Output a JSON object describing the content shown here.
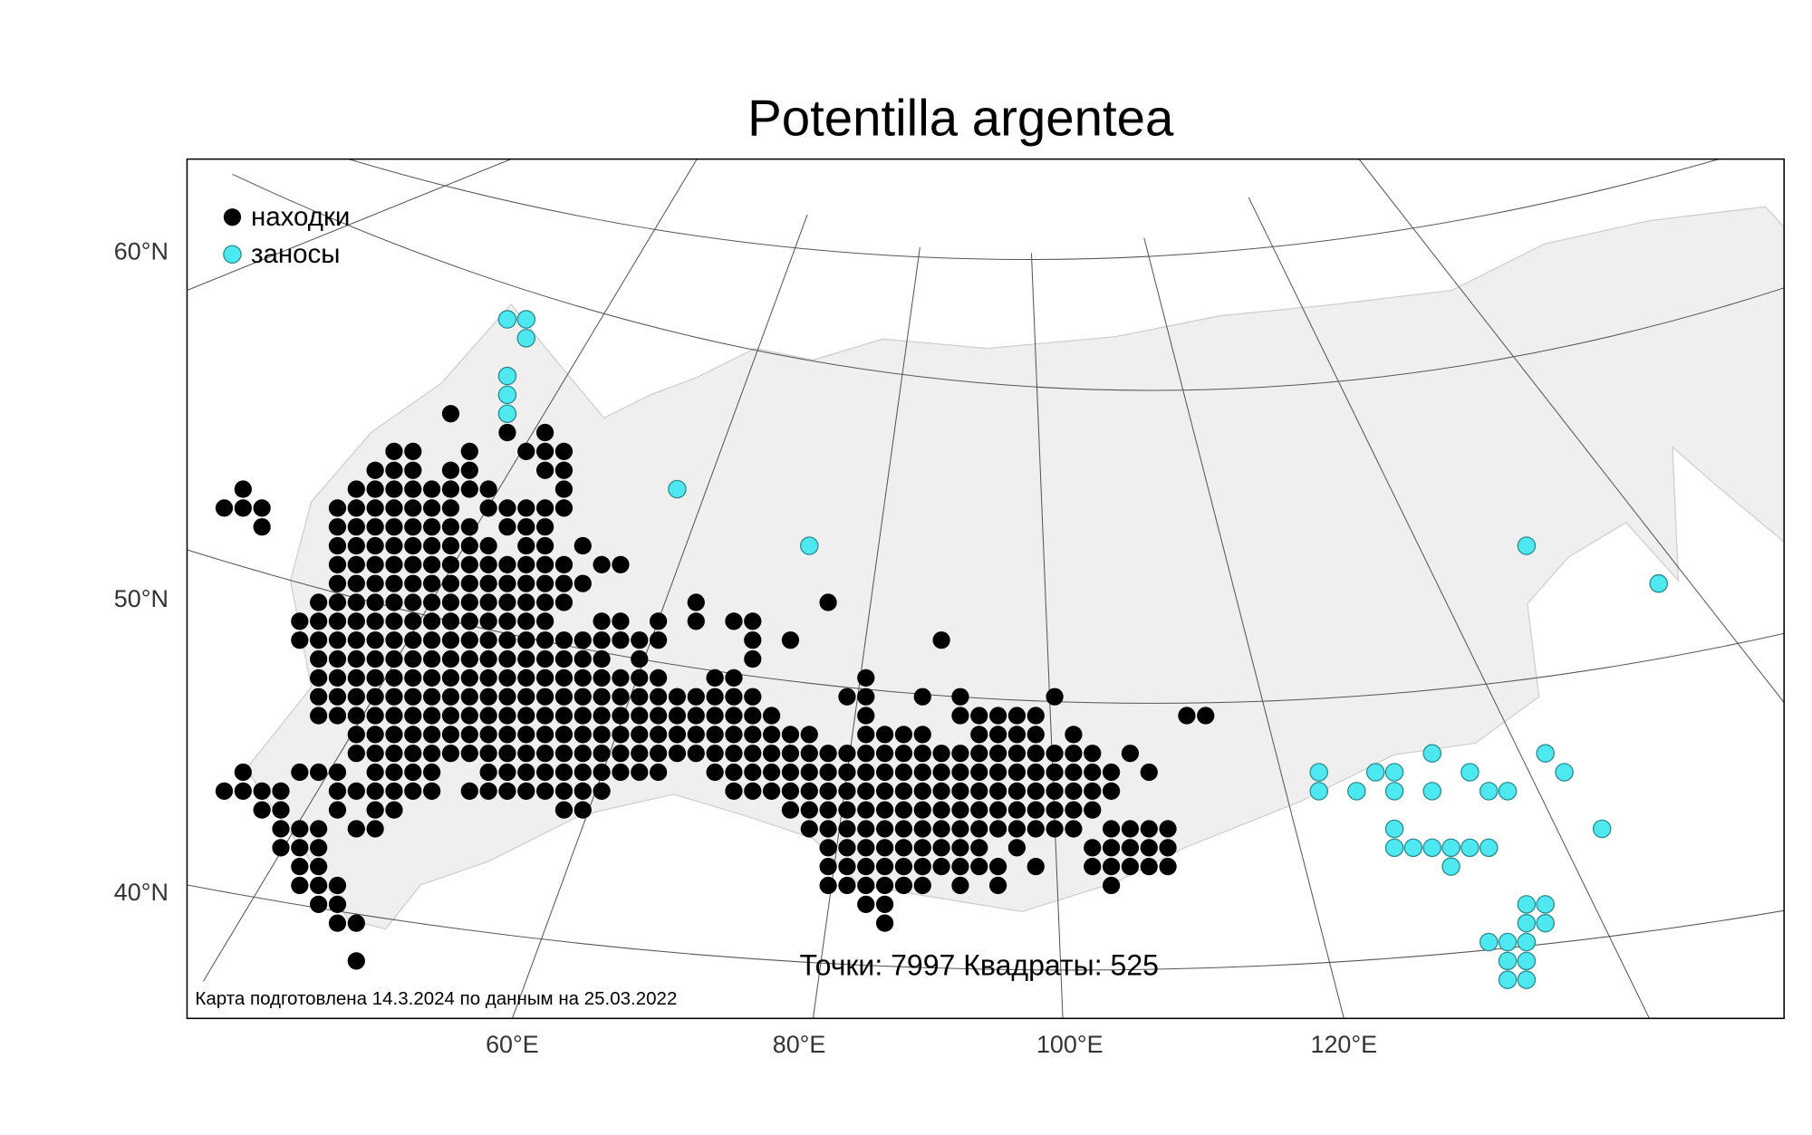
{
  "map": {
    "title": "Potentilla argentea",
    "legend": [
      {
        "name": "находки",
        "color": "#000000"
      },
      {
        "name": "заносы",
        "color": "#4de8f0"
      }
    ],
    "lat_labels": [
      "60°N",
      "50°N",
      "40°N"
    ],
    "lon_labels": [
      "60°E",
      "80°E",
      "100°E",
      "120°E"
    ],
    "summary": "Точки: 7997 Квадраты: 525",
    "credit": "Карта подготовлена 14.3.2024 по данным на 25.03.2022",
    "records": [
      [
        5,
        12,
        12
      ],
      [
        6,
        15,
        15
      ],
      [
        6,
        17,
        17
      ],
      [
        7,
        9,
        10
      ],
      [
        7,
        13,
        13
      ],
      [
        7,
        16,
        18
      ],
      [
        8,
        8,
        10
      ],
      [
        8,
        12,
        13
      ],
      [
        8,
        17,
        18
      ],
      [
        9,
        1,
        1
      ],
      [
        9,
        7,
        14
      ],
      [
        9,
        18,
        18
      ],
      [
        10,
        0,
        2
      ],
      [
        10,
        6,
        12
      ],
      [
        10,
        14,
        18
      ],
      [
        11,
        2,
        2
      ],
      [
        11,
        6,
        13
      ],
      [
        11,
        15,
        17
      ],
      [
        12,
        6,
        14
      ],
      [
        12,
        16,
        17
      ],
      [
        12,
        19,
        19
      ],
      [
        13,
        6,
        18
      ],
      [
        13,
        20,
        21
      ],
      [
        14,
        6,
        19
      ],
      [
        15,
        5,
        18
      ],
      [
        15,
        25,
        25
      ],
      [
        15,
        32,
        32
      ],
      [
        16,
        4,
        17
      ],
      [
        16,
        20,
        21
      ],
      [
        16,
        23,
        23
      ],
      [
        16,
        25,
        25
      ],
      [
        16,
        27,
        28
      ],
      [
        17,
        4,
        23
      ],
      [
        17,
        28,
        28
      ],
      [
        17,
        30,
        30
      ],
      [
        17,
        38,
        38
      ],
      [
        18,
        5,
        20
      ],
      [
        18,
        22,
        22
      ],
      [
        18,
        28,
        28
      ],
      [
        19,
        5,
        23
      ],
      [
        19,
        26,
        27
      ],
      [
        19,
        34,
        34
      ],
      [
        20,
        5,
        28
      ],
      [
        20,
        33,
        34
      ],
      [
        20,
        37,
        37
      ],
      [
        20,
        39,
        39
      ],
      [
        20,
        44,
        44
      ],
      [
        21,
        5,
        29
      ],
      [
        21,
        34,
        34
      ],
      [
        21,
        39,
        43
      ],
      [
        21,
        51,
        52
      ],
      [
        22,
        7,
        31
      ],
      [
        22,
        34,
        37
      ],
      [
        22,
        40,
        43
      ],
      [
        22,
        45,
        45
      ],
      [
        23,
        7,
        46
      ],
      [
        23,
        48,
        48
      ],
      [
        24,
        1,
        1
      ],
      [
        24,
        4,
        6
      ],
      [
        24,
        8,
        11
      ],
      [
        24,
        14,
        23
      ],
      [
        24,
        26,
        47
      ],
      [
        24,
        49,
        49
      ],
      [
        25,
        0,
        3
      ],
      [
        25,
        6,
        11
      ],
      [
        25,
        13,
        20
      ],
      [
        25,
        27,
        47
      ],
      [
        26,
        2,
        3
      ],
      [
        26,
        6,
        6
      ],
      [
        26,
        8,
        9
      ],
      [
        26,
        18,
        19
      ],
      [
        26,
        30,
        46
      ],
      [
        27,
        3,
        5
      ],
      [
        27,
        7,
        8
      ],
      [
        27,
        31,
        45
      ],
      [
        27,
        47,
        50
      ],
      [
        28,
        3,
        5
      ],
      [
        28,
        32,
        40
      ],
      [
        28,
        42,
        42
      ],
      [
        28,
        46,
        50
      ],
      [
        29,
        4,
        5
      ],
      [
        29,
        32,
        41
      ],
      [
        29,
        43,
        43
      ],
      [
        29,
        46,
        50
      ],
      [
        30,
        4,
        6
      ],
      [
        30,
        32,
        37
      ],
      [
        30,
        39,
        39
      ],
      [
        30,
        41,
        41
      ],
      [
        30,
        47,
        47
      ],
      [
        31,
        5,
        6
      ],
      [
        31,
        34,
        35
      ],
      [
        32,
        6,
        7
      ],
      [
        32,
        35,
        35
      ],
      [
        34,
        7,
        7
      ]
    ],
    "introductions": [
      [
        15,
        0
      ],
      [
        16,
        0
      ],
      [
        16,
        1
      ],
      [
        15,
        3
      ],
      [
        15,
        4
      ],
      [
        15,
        5
      ],
      [
        24,
        9
      ],
      [
        31,
        12
      ],
      [
        69,
        12
      ],
      [
        76,
        14
      ],
      [
        64,
        23
      ],
      [
        70,
        23
      ],
      [
        58,
        24
      ],
      [
        61,
        24
      ],
      [
        62,
        24
      ],
      [
        66,
        24
      ],
      [
        71,
        24
      ],
      [
        58,
        25
      ],
      [
        60,
        25
      ],
      [
        62,
        25
      ],
      [
        64,
        25
      ],
      [
        67,
        25
      ],
      [
        68,
        25
      ],
      [
        62,
        27
      ],
      [
        73,
        27
      ],
      [
        62,
        28
      ],
      [
        63,
        28
      ],
      [
        64,
        28
      ],
      [
        65,
        28
      ],
      [
        66,
        28
      ],
      [
        67,
        28
      ],
      [
        65,
        29
      ],
      [
        69,
        31
      ],
      [
        70,
        31
      ],
      [
        69,
        32
      ],
      [
        70,
        32
      ],
      [
        67,
        33
      ],
      [
        68,
        33
      ],
      [
        69,
        33
      ],
      [
        68,
        34
      ],
      [
        69,
        34
      ],
      [
        68,
        35
      ],
      [
        69,
        35
      ]
    ]
  }
}
